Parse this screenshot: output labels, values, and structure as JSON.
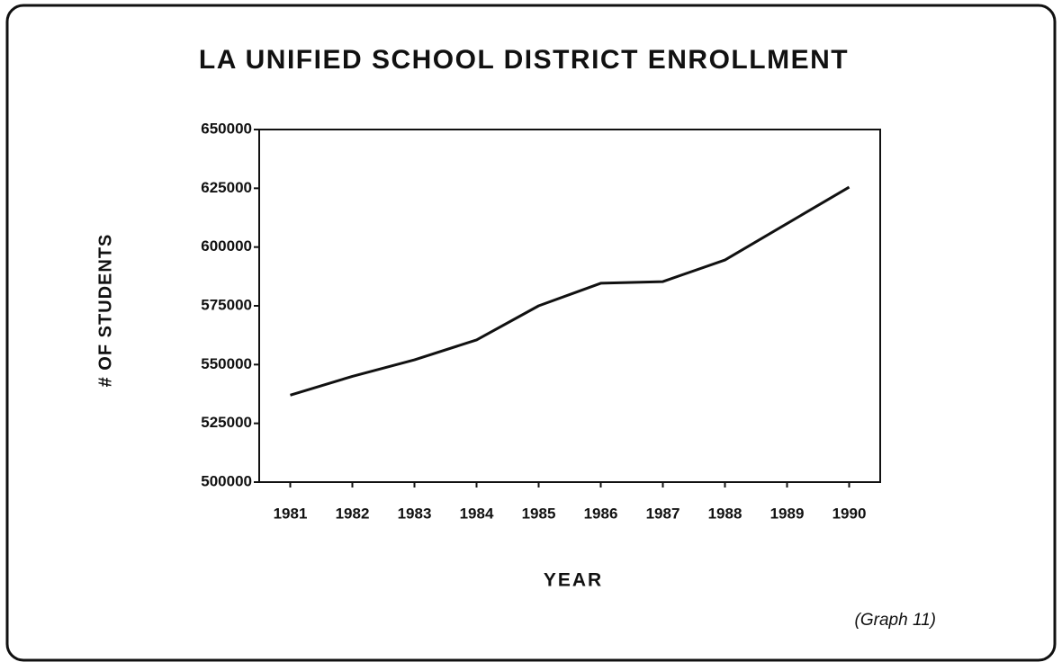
{
  "chart_data": {
    "type": "line",
    "title": "LA UNIFIED SCHOOL DISTRICT ENROLLMENT",
    "x_label": "YEAR",
    "y_label": "# OF STUDENTS",
    "caption": "(Graph 11)",
    "categories": [
      "1981",
      "1982",
      "1983",
      "1984",
      "1985",
      "1986",
      "1987",
      "1988",
      "1989",
      "1990"
    ],
    "values": [
      537000,
      545000,
      552000,
      560500,
      575000,
      584600,
      585300,
      594500,
      610000,
      625500
    ],
    "color": "#111111",
    "ylim": [
      500000,
      650000
    ],
    "yticks": [
      500000,
      525000,
      550000,
      575000,
      600000,
      625000,
      650000
    ],
    "grid": false
  }
}
